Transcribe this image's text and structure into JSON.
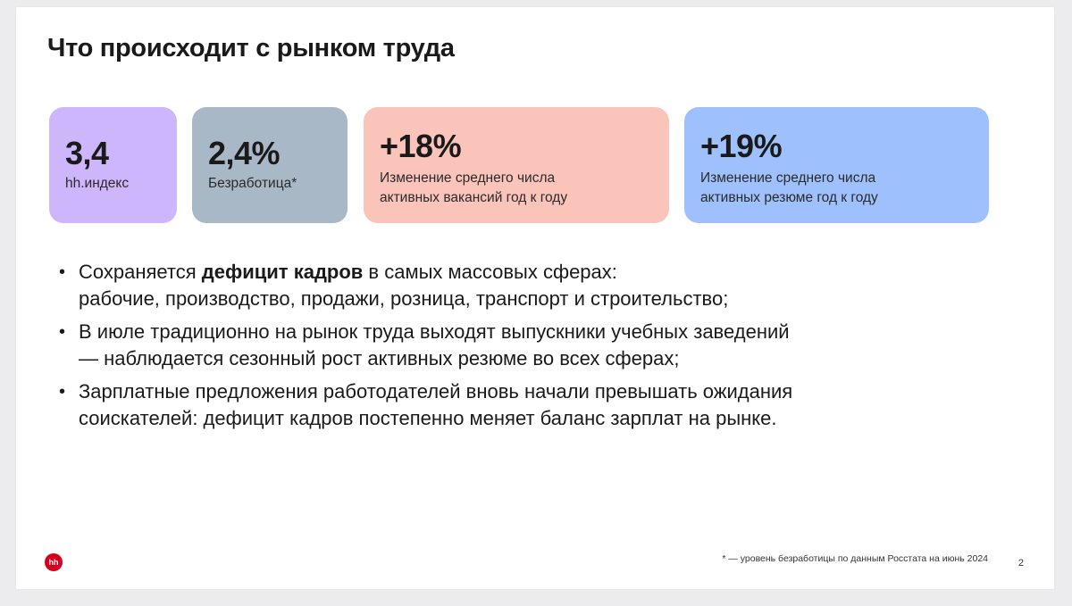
{
  "title": "Что происходит с рынком труда",
  "cards": [
    {
      "value": "3,4",
      "label": "hh.индекс",
      "color": "#cdb6fb"
    },
    {
      "value": "2,4%",
      "label": "Безработица*",
      "color": "#a9b8c6"
    },
    {
      "value": "+18%",
      "label_line1": "Изменение среднего числа",
      "label_line2": "активных вакансий год к году",
      "color": "#fbc4ba"
    },
    {
      "value": "+19%",
      "label_line1": "Изменение среднего числа",
      "label_line2": "активных резюме год к году",
      "color": "#9ec1fd"
    }
  ],
  "bullets": [
    {
      "prefix": "Сохраняется ",
      "bold": "дефицит кадров",
      "suffix": " в самых массовых сферах:",
      "line2": "рабочие, производство, продажи, розница, транспорт и строительство;"
    },
    {
      "line1": "В июле традиционно на рынок труда выходят выпускники учебных заведений",
      "line2": "— наблюдается сезонный рост активных резюме во всех сферах;"
    },
    {
      "line1": "Зарплатные предложения работодателей вновь начали превышать ожидания",
      "line2": "соискателей: дефицит кадров постепенно меняет баланс зарплат на рынке."
    }
  ],
  "bullet_symbol": "•",
  "logo_text": "hh",
  "footnote": "* — уровень безработицы по данным Росстата на июнь 2024",
  "page_number": "2"
}
